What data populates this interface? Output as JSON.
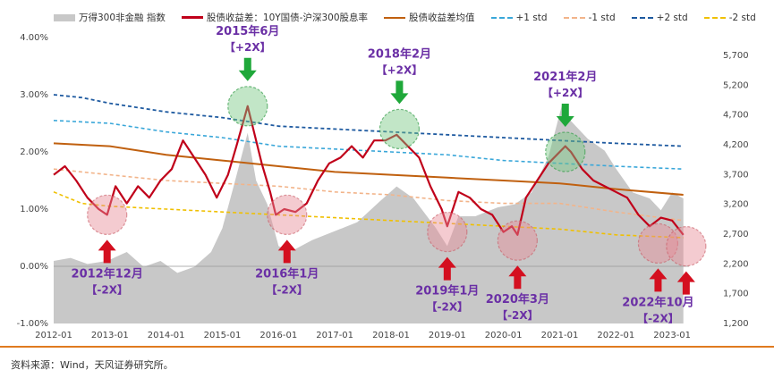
{
  "chart_data": {
    "type": "line",
    "legend": [
      {
        "name": "万得300非金融 指数",
        "kind": "area",
        "color": "#c8c8c8"
      },
      {
        "name": "股债收益差：10Y国债-沪深300股息率",
        "kind": "line",
        "color": "#c0001a"
      },
      {
        "name": "股债收益差均值",
        "kind": "line",
        "color": "#c0600f"
      },
      {
        "name": "+1 std",
        "kind": "dash",
        "color": "#3aa7d9"
      },
      {
        "name": "-1 std",
        "kind": "dash",
        "color": "#f2b48a"
      },
      {
        "name": "+2 std",
        "kind": "dash",
        "color": "#1e5aa0"
      },
      {
        "name": "-2 std",
        "kind": "dash",
        "color": "#f0c000"
      }
    ],
    "x_ticks": [
      "2012-01",
      "2013-01",
      "2014-01",
      "2015-01",
      "2016-01",
      "2017-01",
      "2018-01",
      "2019-01",
      "2020-01",
      "2021-01",
      "2022-01",
      "2023-01"
    ],
    "y_left_ticks": [
      "-1.00%",
      "0.00%",
      "1.00%",
      "2.00%",
      "3.00%",
      "4.00%"
    ],
    "y_left_range": [
      -1.0,
      4.0
    ],
    "y_right_ticks": [
      "1,200",
      "1,700",
      "2,200",
      "2,700",
      "3,200",
      "3,700",
      "4,200",
      "4,700",
      "5,200",
      "5,700"
    ],
    "y_right_range": [
      1200,
      6000
    ],
    "x_range": [
      2012.0,
      2023.3
    ],
    "series": [
      {
        "name": "股债收益差：10Y国债-沪深300股息率",
        "axis": "left",
        "x": [
          2012.0,
          2012.2,
          2012.4,
          2012.6,
          2012.8,
          2012.95,
          2013.1,
          2013.3,
          2013.5,
          2013.7,
          2013.9,
          2014.1,
          2014.3,
          2014.5,
          2014.7,
          2014.9,
          2015.1,
          2015.25,
          2015.45,
          2015.55,
          2015.7,
          2015.85,
          2015.95,
          2016.1,
          2016.3,
          2016.5,
          2016.7,
          2016.9,
          2017.1,
          2017.3,
          2017.5,
          2017.7,
          2017.9,
          2018.1,
          2018.3,
          2018.5,
          2018.7,
          2018.9,
          2019.0,
          2019.2,
          2019.4,
          2019.6,
          2019.8,
          2020.0,
          2020.15,
          2020.25,
          2020.4,
          2020.6,
          2020.8,
          2021.0,
          2021.1,
          2021.2,
          2021.4,
          2021.6,
          2021.8,
          2022.0,
          2022.2,
          2022.4,
          2022.6,
          2022.8,
          2023.0,
          2023.2
        ],
        "values": [
          1.6,
          1.75,
          1.5,
          1.2,
          1.0,
          0.9,
          1.4,
          1.1,
          1.4,
          1.2,
          1.5,
          1.7,
          2.2,
          1.9,
          1.6,
          1.2,
          1.6,
          2.1,
          2.8,
          2.4,
          1.8,
          1.3,
          0.9,
          1.0,
          0.95,
          1.1,
          1.5,
          1.8,
          1.9,
          2.1,
          1.9,
          2.2,
          2.2,
          2.3,
          2.1,
          1.9,
          1.4,
          1.0,
          0.7,
          1.3,
          1.2,
          1.0,
          0.9,
          0.6,
          0.7,
          0.55,
          1.2,
          1.5,
          1.8,
          2.0,
          2.1,
          2.0,
          1.7,
          1.5,
          1.4,
          1.3,
          1.2,
          0.9,
          0.7,
          0.85,
          0.8,
          0.55
        ]
      },
      {
        "name": "万得300非金融 指数",
        "axis": "right",
        "x": [
          2012.0,
          2012.3,
          2012.6,
          2012.95,
          2013.3,
          2013.6,
          2013.9,
          2014.2,
          2014.5,
          2014.8,
          2015.0,
          2015.2,
          2015.45,
          2015.6,
          2015.8,
          2016.0,
          2016.2,
          2016.6,
          2017.0,
          2017.4,
          2017.8,
          2018.1,
          2018.4,
          2018.8,
          2019.0,
          2019.2,
          2019.5,
          2019.9,
          2020.2,
          2020.5,
          2020.8,
          2021.05,
          2021.2,
          2021.5,
          2021.8,
          2022.0,
          2022.3,
          2022.6,
          2022.8,
          2023.0,
          2023.2
        ],
        "values": [
          2250,
          2300,
          2200,
          2250,
          2400,
          2150,
          2250,
          2050,
          2150,
          2400,
          2800,
          3500,
          4400,
          3600,
          3200,
          2500,
          2400,
          2600,
          2750,
          2900,
          3250,
          3500,
          3300,
          2800,
          2500,
          3000,
          3000,
          3150,
          3200,
          3400,
          4000,
          4900,
          4600,
          4300,
          4100,
          3800,
          3400,
          3300,
          3100,
          3400,
          3300
        ]
      },
      {
        "name": "股债收益差均值",
        "axis": "left",
        "x": [
          2012.0,
          2013.0,
          2014.0,
          2015.0,
          2016.0,
          2017.0,
          2018.0,
          2019.0,
          2020.0,
          2021.0,
          2022.0,
          2023.2
        ],
        "values": [
          2.15,
          2.1,
          1.95,
          1.85,
          1.75,
          1.65,
          1.6,
          1.55,
          1.5,
          1.45,
          1.35,
          1.25
        ]
      },
      {
        "name": "+1 std",
        "axis": "left",
        "x": [
          2012.0,
          2013.0,
          2014.0,
          2015.0,
          2016.0,
          2017.0,
          2018.0,
          2019.0,
          2020.0,
          2021.0,
          2022.0,
          2023.2
        ],
        "values": [
          2.55,
          2.5,
          2.35,
          2.25,
          2.1,
          2.05,
          2.0,
          1.95,
          1.85,
          1.8,
          1.75,
          1.7
        ]
      },
      {
        "name": "-1 std",
        "axis": "left",
        "x": [
          2012.0,
          2013.0,
          2014.0,
          2015.0,
          2016.0,
          2017.0,
          2018.0,
          2019.0,
          2020.0,
          2021.0,
          2022.0,
          2023.2
        ],
        "values": [
          1.7,
          1.6,
          1.5,
          1.45,
          1.4,
          1.3,
          1.25,
          1.15,
          1.1,
          1.1,
          0.95,
          0.8
        ]
      },
      {
        "name": "+2 std",
        "axis": "left",
        "x": [
          2012.0,
          2012.5,
          2013.0,
          2014.0,
          2015.0,
          2016.0,
          2017.0,
          2018.0,
          2019.0,
          2020.0,
          2021.0,
          2022.0,
          2023.2
        ],
        "values": [
          3.0,
          2.95,
          2.85,
          2.7,
          2.6,
          2.45,
          2.4,
          2.35,
          2.3,
          2.25,
          2.2,
          2.15,
          2.1
        ]
      },
      {
        "name": "-2 std",
        "axis": "left",
        "x": [
          2012.0,
          2012.5,
          2013.0,
          2014.0,
          2015.0,
          2016.0,
          2017.0,
          2018.0,
          2019.0,
          2020.0,
          2021.0,
          2022.0,
          2023.2
        ],
        "values": [
          1.3,
          1.1,
          1.05,
          1.0,
          0.95,
          0.9,
          0.85,
          0.8,
          0.75,
          0.7,
          0.65,
          0.55,
          0.5
        ]
      }
    ],
    "annotations": [
      {
        "label": "2012年12月",
        "sub": "【-2X】",
        "x": 2012.95,
        "y": 0.9,
        "dir": "up"
      },
      {
        "label": "2015年6月",
        "sub": "【+2X】",
        "x": 2015.45,
        "y": 2.8,
        "dir": "down"
      },
      {
        "label": "2016年1月",
        "sub": "【-2X】",
        "x": 2016.15,
        "y": 0.9,
        "dir": "up"
      },
      {
        "label": "2018年2月",
        "sub": "【+2X】",
        "x": 2018.15,
        "y": 2.4,
        "dir": "down"
      },
      {
        "label": "2019年1月",
        "sub": "【-2X】",
        "x": 2019.0,
        "y": 0.6,
        "dir": "up"
      },
      {
        "label": "2020年3月",
        "sub": "【-2X】",
        "x": 2020.25,
        "y": 0.45,
        "dir": "up"
      },
      {
        "label": "2021年2月",
        "sub": "【+2X】",
        "x": 2021.1,
        "y": 2.0,
        "dir": "down"
      },
      {
        "label": "2022年10月",
        "sub": "【-2X】",
        "x": 2022.75,
        "y": 0.4,
        "dir": "up"
      },
      {
        "label": "",
        "sub": "",
        "x": 2023.25,
        "y": 0.35,
        "dir": "up"
      }
    ]
  },
  "source": "资料来源：Wind，天风证券研究所。"
}
